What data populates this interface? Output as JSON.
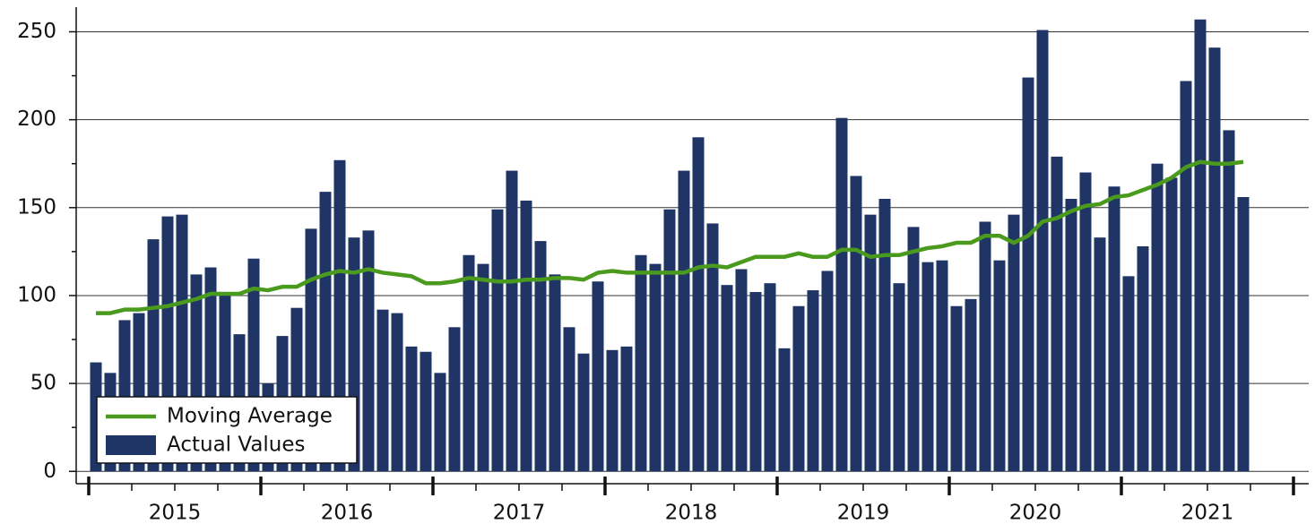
{
  "chart_data": {
    "type": "bar",
    "categories": [
      "2015",
      null,
      null,
      null,
      null,
      null,
      null,
      null,
      null,
      null,
      null,
      null,
      "2016",
      null,
      null,
      null,
      null,
      null,
      null,
      null,
      null,
      null,
      null,
      null,
      "2017",
      null,
      null,
      null,
      null,
      null,
      null,
      null,
      null,
      null,
      null,
      null,
      "2018",
      null,
      null,
      null,
      null,
      null,
      null,
      null,
      null,
      null,
      null,
      null,
      "2019",
      null,
      null,
      null,
      null,
      null,
      null,
      null,
      null,
      null,
      null,
      null,
      "2020",
      null,
      null,
      null,
      null,
      null,
      null,
      null,
      null,
      null,
      null,
      null,
      "2021",
      null,
      null,
      null,
      null,
      null,
      null,
      null,
      null
    ],
    "series": [
      {
        "name": "Actual Values",
        "type": "bar",
        "color": "#1f3566",
        "values": [
          62,
          56,
          86,
          90,
          132,
          145,
          146,
          112,
          116,
          101,
          78,
          121,
          50,
          77,
          93,
          138,
          159,
          177,
          133,
          137,
          92,
          90,
          71,
          68,
          56,
          82,
          123,
          118,
          149,
          171,
          154,
          131,
          112,
          82,
          67,
          108,
          69,
          71,
          123,
          118,
          149,
          171,
          190,
          141,
          106,
          115,
          102,
          107,
          70,
          94,
          103,
          114,
          201,
          168,
          146,
          155,
          107,
          139,
          119,
          120,
          94,
          98,
          142,
          120,
          146,
          224,
          251,
          179,
          155,
          170,
          133,
          162,
          111,
          128,
          175,
          167,
          222,
          257,
          241,
          194,
          156
        ]
      },
      {
        "name": "Moving Average",
        "type": "line",
        "color": "#4a9a1e",
        "values": [
          90,
          90,
          92,
          92,
          93,
          94,
          96,
          98,
          101,
          101,
          101,
          104,
          103,
          105,
          105,
          109,
          112,
          114,
          113,
          115,
          113,
          112,
          111,
          107,
          107,
          108,
          110,
          109,
          108,
          108,
          109,
          109,
          110,
          110,
          109,
          113,
          114,
          113,
          113,
          113,
          113,
          113,
          116,
          117,
          116,
          119,
          122,
          122,
          122,
          124,
          122,
          122,
          126,
          126,
          122,
          123,
          123,
          125,
          127,
          128,
          130,
          130,
          134,
          134,
          130,
          134,
          142,
          144,
          148,
          151,
          152,
          156,
          157,
          160,
          163,
          167,
          173,
          176,
          175,
          175,
          176
        ]
      }
    ],
    "ylim": [
      -7,
      264
    ],
    "yticks": [
      0,
      50,
      100,
      150,
      200,
      250
    ],
    "grid": true,
    "legend": "lower left"
  }
}
